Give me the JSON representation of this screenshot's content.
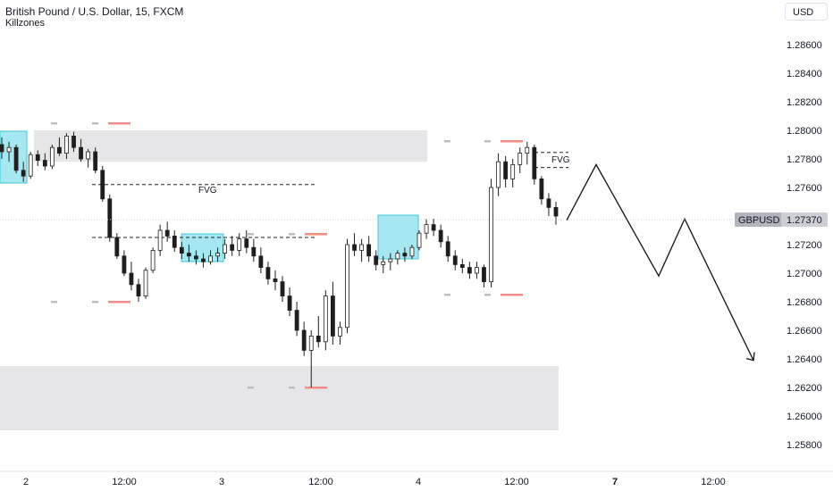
{
  "header": {
    "title": "British Pound / U.S. Dollar, 15, FXCM",
    "indicator": "Killzones",
    "currency_button": "USD"
  },
  "price_tag": {
    "symbol": "GBPUSD",
    "value": "1.27370"
  },
  "annotations": {
    "fvg_1": "FVG",
    "fvg_2": "FVG"
  },
  "colors": {
    "candle": "#1e1e1e",
    "killzone_box": "#5dd6e6",
    "zone_box": "#e6e6e8",
    "marker_gray": "#bdbdbd",
    "marker_red": "#f28b82",
    "price_tag_bg": "#b2b5be"
  },
  "chart_data": {
    "type": "candlestick",
    "y_axis": {
      "min": 1.2575,
      "max": 1.2875,
      "ticks": [
        "1.28600",
        "1.28400",
        "1.28200",
        "1.28000",
        "1.27800",
        "1.27600",
        "1.27400",
        "1.27200",
        "1.27000",
        "1.26800",
        "1.26600",
        "1.26400",
        "1.26200",
        "1.26000",
        "1.25800"
      ]
    },
    "x_axis": {
      "ticks": [
        {
          "label": "2",
          "bold": false
        },
        {
          "label": "12:00",
          "bold": false
        },
        {
          "label": "3",
          "bold": false
        },
        {
          "label": "12:00",
          "bold": false
        },
        {
          "label": "4",
          "bold": false
        },
        {
          "label": "12:00",
          "bold": false
        },
        {
          "label": "7",
          "bold": true
        },
        {
          "label": "12:00",
          "bold": false
        }
      ]
    },
    "last_price": 1.2737,
    "zones": [
      {
        "from": 1.2778,
        "to": 1.28
      },
      {
        "from": 1.259,
        "to": 1.2635
      }
    ],
    "fvg_levels": [
      1.2762,
      1.2725,
      1.27845,
      1.2774
    ],
    "projection_prices": [
      1.2737,
      1.2776,
      1.2698,
      1.2738,
      1.2639
    ],
    "candles_ohlc": [
      [
        1.279,
        1.2795,
        1.278,
        1.2785
      ],
      [
        1.2785,
        1.2792,
        1.2778,
        1.2788
      ],
      [
        1.2788,
        1.279,
        1.277,
        1.2772
      ],
      [
        1.2772,
        1.2778,
        1.2764,
        1.2768
      ],
      [
        1.2768,
        1.2785,
        1.2766,
        1.2783
      ],
      [
        1.2783,
        1.2786,
        1.2775,
        1.2779
      ],
      [
        1.2779,
        1.2784,
        1.2772,
        1.2775
      ],
      [
        1.2775,
        1.279,
        1.2773,
        1.2788
      ],
      [
        1.2788,
        1.2795,
        1.2782,
        1.2784
      ],
      [
        1.2784,
        1.2798,
        1.278,
        1.2796
      ],
      [
        1.2796,
        1.2799,
        1.2785,
        1.2788
      ],
      [
        1.2788,
        1.2794,
        1.2778,
        1.278
      ],
      [
        1.278,
        1.2787,
        1.2774,
        1.2785
      ],
      [
        1.2785,
        1.2788,
        1.277,
        1.2772
      ],
      [
        1.2772,
        1.2775,
        1.275,
        1.2752
      ],
      [
        1.2752,
        1.2755,
        1.2722,
        1.2725
      ],
      [
        1.2725,
        1.2728,
        1.271,
        1.2712
      ],
      [
        1.2712,
        1.2716,
        1.2698,
        1.27
      ],
      [
        1.27,
        1.2708,
        1.2688,
        1.2692
      ],
      [
        1.2692,
        1.2696,
        1.268,
        1.2684
      ],
      [
        1.2684,
        1.2704,
        1.2682,
        1.2702
      ],
      [
        1.2702,
        1.2718,
        1.27,
        1.2716
      ],
      [
        1.2716,
        1.2734,
        1.2712,
        1.273
      ],
      [
        1.273,
        1.2736,
        1.2722,
        1.2726
      ],
      [
        1.2726,
        1.273,
        1.2715,
        1.2718
      ],
      [
        1.2718,
        1.2722,
        1.271,
        1.2714
      ],
      [
        1.2714,
        1.272,
        1.2708,
        1.2712
      ],
      [
        1.2712,
        1.2716,
        1.2706,
        1.271
      ],
      [
        1.271,
        1.2714,
        1.2704,
        1.2708
      ],
      [
        1.2708,
        1.2716,
        1.2706,
        1.2712
      ],
      [
        1.2712,
        1.2718,
        1.2708,
        1.2714
      ],
      [
        1.2714,
        1.2724,
        1.271,
        1.272
      ],
      [
        1.272,
        1.2726,
        1.2712,
        1.2716
      ],
      [
        1.2716,
        1.2728,
        1.2712,
        1.2724
      ],
      [
        1.2724,
        1.273,
        1.2714,
        1.2718
      ],
      [
        1.2718,
        1.2724,
        1.2708,
        1.2712
      ],
      [
        1.2712,
        1.2718,
        1.27,
        1.2704
      ],
      [
        1.2704,
        1.2708,
        1.2692,
        1.2696
      ],
      [
        1.2696,
        1.2702,
        1.2688,
        1.2694
      ],
      [
        1.2694,
        1.2698,
        1.268,
        1.2684
      ],
      [
        1.2684,
        1.269,
        1.267,
        1.2674
      ],
      [
        1.2674,
        1.268,
        1.2656,
        1.266
      ],
      [
        1.266,
        1.2666,
        1.2642,
        1.2646
      ],
      [
        1.2646,
        1.266,
        1.262,
        1.2656
      ],
      [
        1.2656,
        1.267,
        1.2648,
        1.2652
      ],
      [
        1.2652,
        1.2688,
        1.2646,
        1.2684
      ],
      [
        1.2684,
        1.2694,
        1.265,
        1.2656
      ],
      [
        1.2656,
        1.2666,
        1.265,
        1.2662
      ],
      [
        1.2662,
        1.2724,
        1.2658,
        1.272
      ],
      [
        1.272,
        1.2728,
        1.2712,
        1.2716
      ],
      [
        1.2716,
        1.2724,
        1.2708,
        1.272
      ],
      [
        1.272,
        1.2726,
        1.2708,
        1.2712
      ],
      [
        1.2712,
        1.2716,
        1.2702,
        1.2706
      ],
      [
        1.2706,
        1.2712,
        1.27,
        1.2708
      ],
      [
        1.2708,
        1.2714,
        1.2702,
        1.271
      ],
      [
        1.271,
        1.2716,
        1.2706,
        1.2714
      ],
      [
        1.2714,
        1.2718,
        1.2708,
        1.2712
      ],
      [
        1.2712,
        1.272,
        1.271,
        1.2718
      ],
      [
        1.2718,
        1.273,
        1.2716,
        1.2728
      ],
      [
        1.2728,
        1.2738,
        1.2724,
        1.2734
      ],
      [
        1.2734,
        1.2738,
        1.2726,
        1.273
      ],
      [
        1.273,
        1.2734,
        1.2718,
        1.2722
      ],
      [
        1.2722,
        1.2726,
        1.2708,
        1.2712
      ],
      [
        1.2712,
        1.2716,
        1.2702,
        1.2706
      ],
      [
        1.2706,
        1.271,
        1.27,
        1.2704
      ],
      [
        1.2704,
        1.2708,
        1.2696,
        1.27
      ],
      [
        1.27,
        1.2708,
        1.2696,
        1.2704
      ],
      [
        1.2704,
        1.2706,
        1.269,
        1.2694
      ],
      [
        1.2694,
        1.2766,
        1.269,
        1.276
      ],
      [
        1.276,
        1.2784,
        1.2754,
        1.2778
      ],
      [
        1.2778,
        1.2782,
        1.276,
        1.2766
      ],
      [
        1.2766,
        1.278,
        1.276,
        1.2776
      ],
      [
        1.2776,
        1.2788,
        1.277,
        1.2784
      ],
      [
        1.2784,
        1.2792,
        1.2776,
        1.2788
      ],
      [
        1.2788,
        1.279,
        1.2762,
        1.2766
      ],
      [
        1.2766,
        1.2768,
        1.2748,
        1.2752
      ],
      [
        1.2752,
        1.2756,
        1.274,
        1.2746
      ],
      [
        1.2746,
        1.275,
        1.2734,
        1.274
      ]
    ]
  }
}
